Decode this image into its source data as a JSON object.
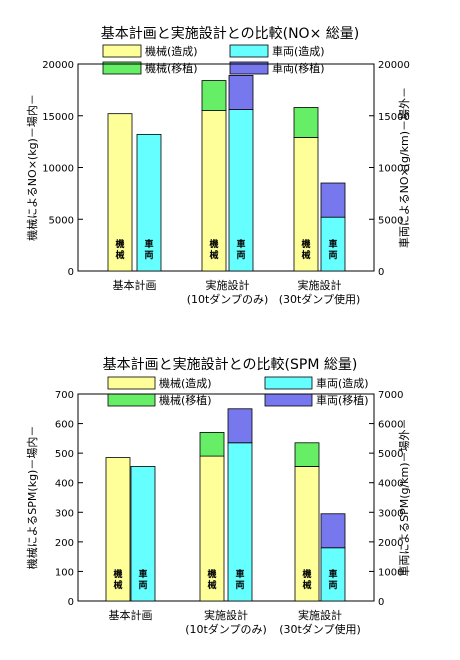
{
  "chart_data": [
    {
      "type": "bar",
      "title": "基本計画と実施設計との比較(NO× 総量)",
      "legend": [
        {
          "label": "機械(造成)",
          "color": "#ffff99"
        },
        {
          "label": "車両(造成)",
          "color": "#66ffff"
        },
        {
          "label": "機械(移植)",
          "color": "#66ee66"
        },
        {
          "label": "車両(移植)",
          "color": "#7777ee"
        }
      ],
      "categories": [
        "基本計画",
        "実施設計",
        "実施設計"
      ],
      "category_sublabels": [
        "",
        "(10tダンプのみ)",
        "(30tダンプ使用)"
      ],
      "series": [
        {
          "name": "機械(造成)",
          "stack": "機械",
          "values": [
            15200,
            15500,
            12900
          ]
        },
        {
          "name": "機械(移植)",
          "stack": "機械",
          "values": [
            0,
            2900,
            2900
          ]
        },
        {
          "name": "車両(造成)",
          "stack": "車両",
          "values": [
            13200,
            15600,
            5200
          ]
        },
        {
          "name": "車両(移植)",
          "stack": "車両",
          "values": [
            0,
            3300,
            3300
          ]
        }
      ],
      "bar_labels": [
        "機械",
        "車両"
      ],
      "ylabel_left": "機械によるNO×(kg)－場内－",
      "ylabel_right": "車両によるNO×(g/km)－場外－",
      "ylim_left": [
        0,
        20000
      ],
      "ylim_right": [
        0,
        20000
      ],
      "yticks_left": [
        0,
        5000,
        10000,
        15000,
        20000
      ],
      "yticks_right": [
        0,
        5000,
        10000,
        15000,
        20000
      ],
      "grid": false
    },
    {
      "type": "bar",
      "title": "基本計画と実施設計との比較(SPM 総量)",
      "legend": [
        {
          "label": "機械(造成)",
          "color": "#ffff99"
        },
        {
          "label": "車両(造成)",
          "color": "#66ffff"
        },
        {
          "label": "機械(移植)",
          "color": "#66ee66"
        },
        {
          "label": "車両(移植)",
          "color": "#7777ee"
        }
      ],
      "categories": [
        "基本計画",
        "実施設計",
        "実施設計"
      ],
      "category_sublabels": [
        "",
        "(10tダンプのみ)",
        "(30tダンプ使用)"
      ],
      "series": [
        {
          "name": "機械(造成)",
          "stack": "機械",
          "axis": "left",
          "values": [
            485,
            490,
            455
          ]
        },
        {
          "name": "機械(移植)",
          "stack": "機械",
          "axis": "left",
          "values": [
            0,
            80,
            80
          ]
        },
        {
          "name": "車両(造成)",
          "stack": "車両",
          "axis": "right",
          "values": [
            4550,
            5350,
            1800
          ]
        },
        {
          "name": "車両(移植)",
          "stack": "車両",
          "axis": "right",
          "values": [
            0,
            1150,
            1150
          ]
        }
      ],
      "bar_labels": [
        "機械",
        "車両"
      ],
      "ylabel_left": "機械によるSPM(kg)－場内－",
      "ylabel_right": "車両によるSPM(g/km)－場外－",
      "ylim_left": [
        0,
        700
      ],
      "ylim_right": [
        0,
        7000
      ],
      "yticks_left": [
        0,
        100,
        200,
        300,
        400,
        500,
        600,
        700
      ],
      "yticks_right": [
        0,
        1000,
        2000,
        3000,
        4000,
        5000,
        6000,
        7000
      ],
      "grid": false
    }
  ]
}
